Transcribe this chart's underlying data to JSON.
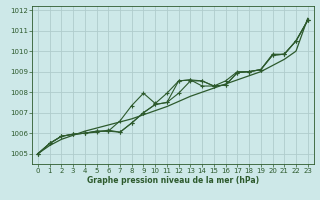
{
  "xlabel": "Graphe pression niveau de la mer (hPa)",
  "bg_color": "#cde8e8",
  "grid_color": "#b0cccc",
  "line_color": "#2d5a2d",
  "xlim": [
    -0.5,
    23.5
  ],
  "ylim": [
    1004.5,
    1012.2
  ],
  "yticks": [
    1005,
    1006,
    1007,
    1008,
    1009,
    1010,
    1011,
    1012
  ],
  "xticks": [
    0,
    1,
    2,
    3,
    4,
    5,
    6,
    7,
    8,
    9,
    10,
    11,
    12,
    13,
    14,
    15,
    16,
    17,
    18,
    19,
    20,
    21,
    22,
    23
  ],
  "series_smooth": [
    1005.0,
    1005.4,
    1005.7,
    1005.9,
    1006.1,
    1006.25,
    1006.4,
    1006.55,
    1006.7,
    1006.9,
    1007.1,
    1007.3,
    1007.55,
    1007.8,
    1008.0,
    1008.2,
    1008.4,
    1008.6,
    1008.8,
    1009.0,
    1009.3,
    1009.6,
    1010.0,
    1011.6
  ],
  "series": [
    [
      1005.0,
      1005.5,
      1005.85,
      1005.95,
      1006.0,
      1006.05,
      1006.15,
      1006.05,
      1006.5,
      1007.0,
      1007.4,
      1007.5,
      1008.55,
      1008.6,
      1008.55,
      1008.3,
      1008.35,
      1008.95,
      1009.0,
      1009.1,
      1009.8,
      1009.85,
      1010.5,
      1011.5
    ],
    [
      1005.0,
      1005.5,
      1005.85,
      1005.95,
      1006.0,
      1006.1,
      1006.1,
      1006.6,
      1007.35,
      1007.95,
      1007.45,
      1007.95,
      1008.55,
      1008.6,
      1008.3,
      1008.3,
      1008.55,
      1009.0,
      1009.0,
      1009.1,
      1009.85,
      1009.85,
      1010.5,
      1011.5
    ],
    [
      1005.0,
      1005.5,
      1005.85,
      1005.95,
      1006.0,
      1006.1,
      1006.1,
      1006.05,
      1006.5,
      1007.0,
      1007.4,
      1007.5,
      1007.95,
      1008.55,
      1008.55,
      1008.3,
      1008.35,
      1008.95,
      1009.0,
      1009.1,
      1009.8,
      1009.85,
      1010.5,
      1011.5
    ]
  ]
}
